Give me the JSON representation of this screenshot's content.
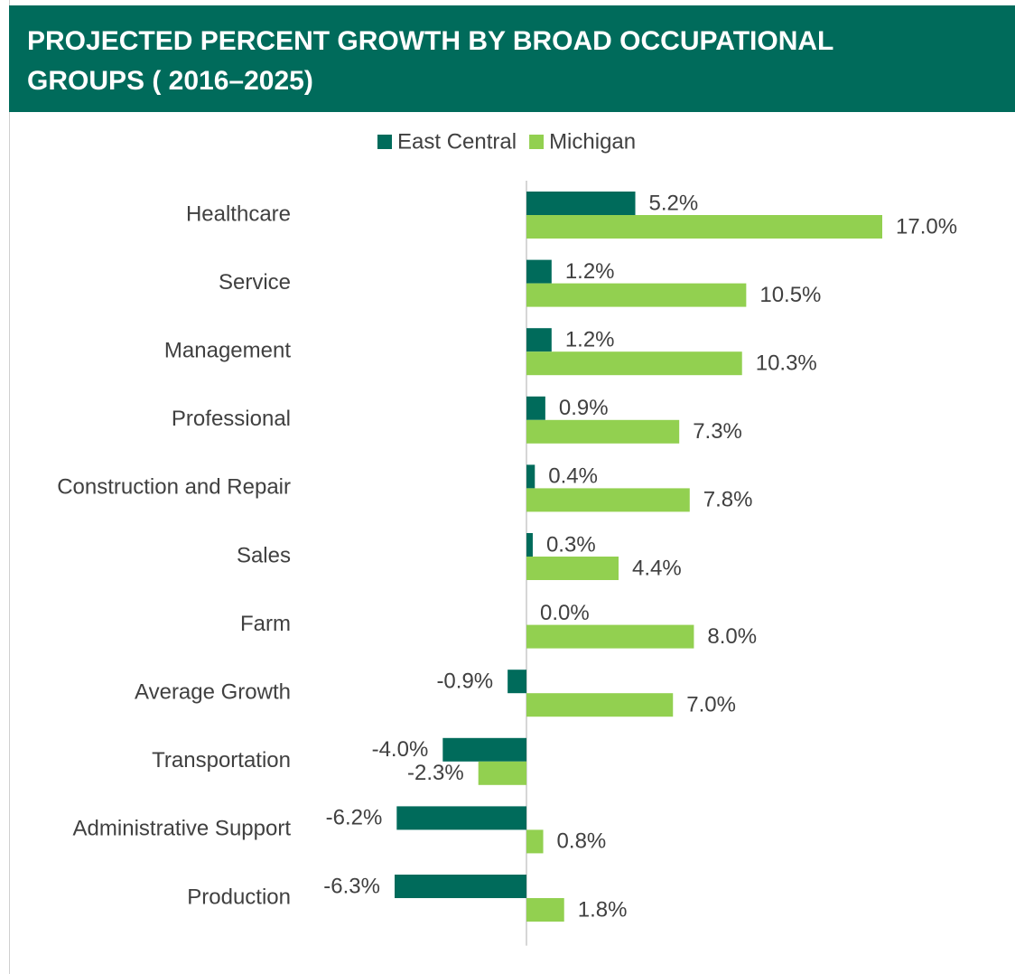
{
  "chart_data": {
    "type": "hbar",
    "title": "PROJECTED PERCENT GROWTH BY BROAD OCCUPATIONAL GROUPS ( 2016–2025)",
    "categories": [
      "Healthcare",
      "Service",
      "Management",
      "Professional",
      "Construction and Repair",
      "Sales",
      "Farm",
      "Average Growth",
      "Transportation",
      "Administrative Support",
      "Production"
    ],
    "series": [
      {
        "name": "East Central",
        "color": "#006b5b",
        "values": [
          5.2,
          1.2,
          1.2,
          0.9,
          0.4,
          0.3,
          0.0,
          -0.9,
          -4.0,
          -6.2,
          -6.3
        ],
        "value_labels": [
          "5.2%",
          "1.2%",
          "1.2%",
          "0.9%",
          "0.4%",
          "0.3%",
          "0.0%",
          "-0.9%",
          "-4.0%",
          "-6.2%",
          "-6.3%"
        ]
      },
      {
        "name": "Michigan",
        "color": "#92d050",
        "values": [
          17.0,
          10.5,
          10.3,
          7.3,
          7.8,
          4.4,
          8.0,
          7.0,
          -2.3,
          0.8,
          1.8
        ],
        "value_labels": [
          "17.0%",
          "10.5%",
          "10.3%",
          "7.3%",
          "7.8%",
          "4.4%",
          "8.0%",
          "7.0%",
          "-2.3%",
          "0.8%",
          "1.8%"
        ]
      }
    ],
    "legend": "top"
  }
}
